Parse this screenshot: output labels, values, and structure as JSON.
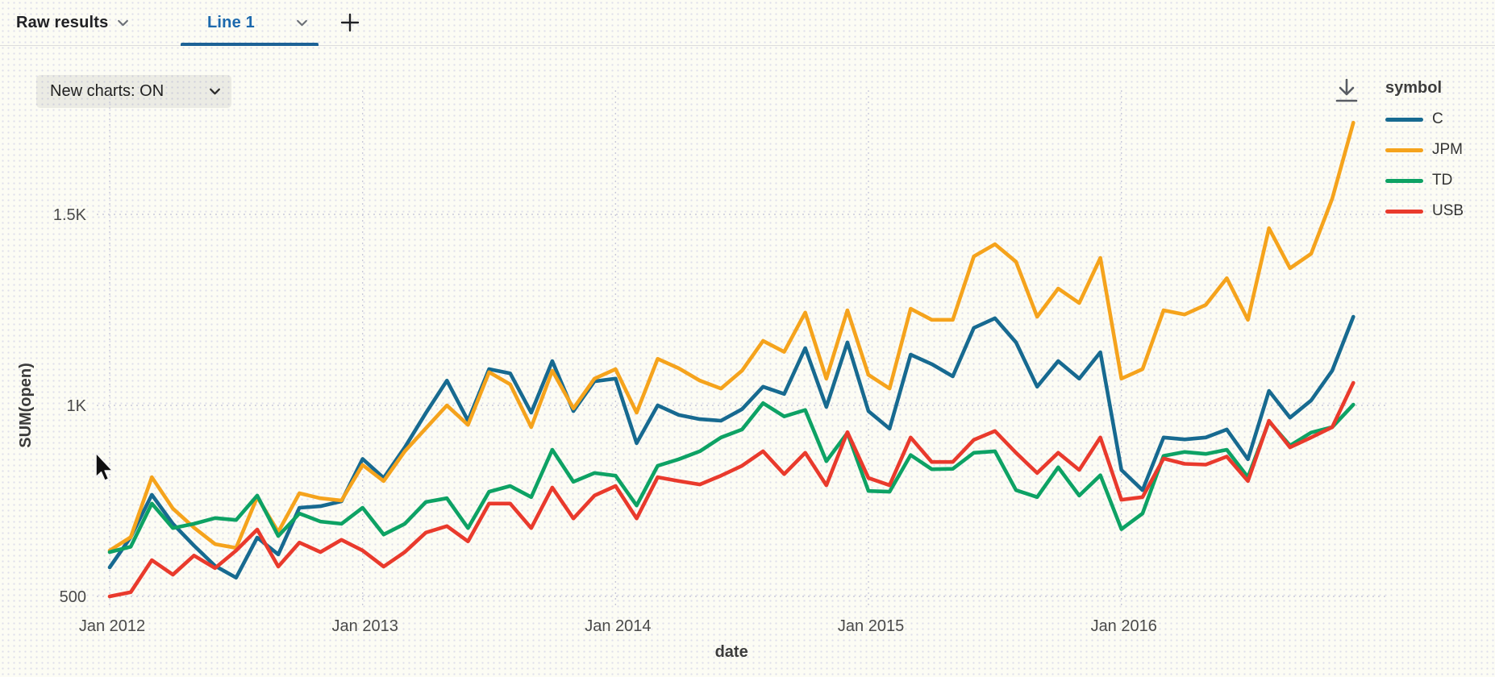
{
  "tab_bar": {
    "tabs": [
      {
        "label": "Raw results",
        "active": false
      },
      {
        "label": "Line 1",
        "active": true
      }
    ]
  },
  "toolbar": {
    "new_charts_label": "New charts: ON"
  },
  "icons": {
    "download": "download-icon",
    "chevron": "chevron-down-icon",
    "add_tab": "plus-icon"
  },
  "ui_colors": {
    "active_tab_text": "#1c69ad",
    "active_tab_underline": "#1d6296",
    "gridline": "#c9c9da",
    "tick_text": "#4a4a4a",
    "axis_title_text": "#3b3b3b"
  },
  "chart_data": {
    "type": "line",
    "title": "",
    "xlabel": "date",
    "ylabel": "SUM(open)",
    "legend_title": "symbol",
    "legend_position": "right",
    "grid": "dotted",
    "ylim": [
      460,
      1800
    ],
    "y_ticks": [
      {
        "value": 500,
        "label": "500"
      },
      {
        "value": 1000,
        "label": "1K"
      },
      {
        "value": 1500,
        "label": "1.5K"
      }
    ],
    "x_ticks": [
      {
        "index": 0,
        "label": "Jan 2012"
      },
      {
        "index": 12,
        "label": "Jan 2013"
      },
      {
        "index": 24,
        "label": "Jan 2014"
      },
      {
        "index": 36,
        "label": "Jan 2015"
      },
      {
        "index": 48,
        "label": "Jan 2016"
      }
    ],
    "months": [
      "2012-01",
      "2012-02",
      "2012-03",
      "2012-04",
      "2012-05",
      "2012-06",
      "2012-07",
      "2012-08",
      "2012-09",
      "2012-10",
      "2012-11",
      "2012-12",
      "2013-01",
      "2013-02",
      "2013-03",
      "2013-04",
      "2013-05",
      "2013-06",
      "2013-07",
      "2013-08",
      "2013-09",
      "2013-10",
      "2013-11",
      "2013-12",
      "2014-01",
      "2014-02",
      "2014-03",
      "2014-04",
      "2014-05",
      "2014-06",
      "2014-07",
      "2014-08",
      "2014-09",
      "2014-10",
      "2014-11",
      "2014-12",
      "2015-01",
      "2015-02",
      "2015-03",
      "2015-04",
      "2015-05",
      "2015-06",
      "2015-07",
      "2015-08",
      "2015-09",
      "2015-10",
      "2015-11",
      "2015-12",
      "2016-01",
      "2016-02",
      "2016-03",
      "2016-04",
      "2016-05",
      "2016-06",
      "2016-07",
      "2016-08",
      "2016-09",
      "2016-10",
      "2016-11",
      "2016-12"
    ],
    "series": [
      {
        "name": "C",
        "color": "#176a90",
        "values": [
          576,
          655,
          766,
          690,
          633,
          580,
          549,
          654,
          610,
          732,
          736,
          749,
          860,
          810,
          890,
          980,
          1065,
          960,
          1095,
          1084,
          981,
          1116,
          985,
          1063,
          1070,
          901,
          1000,
          975,
          964,
          960,
          990,
          1049,
          1030,
          1150,
          996,
          1165,
          985,
          939,
          1133,
          1108,
          1076,
          1203,
          1228,
          1165,
          1049,
          1116,
          1070,
          1139,
          831,
          778,
          916,
          911,
          916,
          937,
          859,
          1038,
          968,
          1013,
          1091,
          1232
        ]
      },
      {
        "name": "JPM",
        "color": "#f5a31c",
        "values": [
          620,
          655,
          812,
          730,
          680,
          637,
          627,
          760,
          669,
          770,
          757,
          751,
          844,
          802,
          880,
          940,
          1000,
          949,
          1087,
          1055,
          943,
          1091,
          992,
          1070,
          1095,
          981,
          1122,
          1097,
          1065,
          1044,
          1091,
          1169,
          1140,
          1243,
          1070,
          1249,
          1080,
          1044,
          1253,
          1224,
          1224,
          1390,
          1422,
          1376,
          1232,
          1306,
          1268,
          1386,
          1070,
          1095,
          1249,
          1238,
          1263,
          1333,
          1224,
          1464,
          1359,
          1397,
          1541,
          1740
        ]
      },
      {
        "name": "TD",
        "color": "#0da264",
        "values": [
          616,
          630,
          743,
          679,
          690,
          705,
          700,
          764,
          658,
          717,
          696,
          690,
          732,
          662,
          690,
          747,
          757,
          679,
          774,
          789,
          760,
          884,
          800,
          823,
          816,
          738,
          842,
          859,
          880,
          916,
          937,
          1006,
          971,
          988,
          854,
          928,
          776,
          774,
          870,
          833,
          834,
          876,
          880,
          778,
          760,
          838,
          764,
          817,
          676,
          717,
          868,
          878,
          873,
          884,
          812,
          958,
          895,
          929,
          943,
          1002
        ]
      },
      {
        "name": "USB",
        "color": "#e93a2c",
        "values": [
          500,
          511,
          595,
          557,
          607,
          574,
          620,
          675,
          578,
          641,
          616,
          648,
          620,
          578,
          616,
          667,
          684,
          644,
          743,
          743,
          679,
          785,
          704,
          764,
          789,
          704,
          812,
          802,
          793,
          816,
          842,
          880,
          820,
          876,
          791,
          930,
          810,
          791,
          916,
          852,
          852,
          910,
          933,
          876,
          823,
          876,
          831,
          916,
          753,
          760,
          861,
          847,
          845,
          866,
          802,
          960,
          890,
          916,
          943,
          1059
        ]
      }
    ]
  }
}
